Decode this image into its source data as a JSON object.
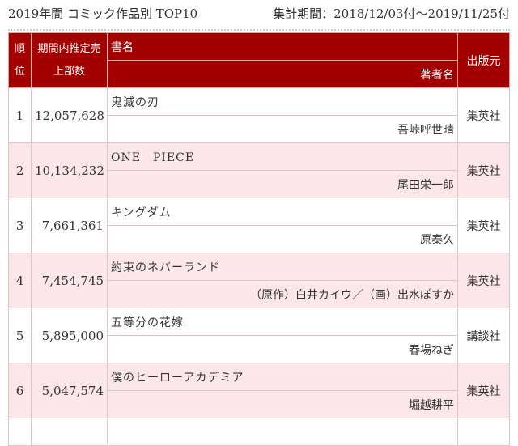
{
  "header": {
    "title": "2019年間 コミック作品別 TOP10",
    "period": "集計期間：2018/12/03付～2019/11/25付"
  },
  "columns": {
    "rank": "順位",
    "sales": "期間内推定売上部数",
    "title": "書名",
    "author": "著者名",
    "publisher": "出版元"
  },
  "colors": {
    "header_bg": "#a30000",
    "alt_row": "#fbe6ea"
  },
  "rows": [
    {
      "rank": "1",
      "sales": "12,057,628",
      "title": "鬼滅の刃",
      "author": "吾峠呼世晴",
      "publisher": "集英社"
    },
    {
      "rank": "2",
      "sales": "10,134,232",
      "title": "ONE　PIECE",
      "author": "尾田栄一郎",
      "publisher": "集英社"
    },
    {
      "rank": "3",
      "sales": "7,661,361",
      "title": "キングダム",
      "author": "原泰久",
      "publisher": "集英社"
    },
    {
      "rank": "4",
      "sales": "7,454,745",
      "title": "約束のネバーランド",
      "author": "（原作）白井カイウ／（画）出水ぽすか",
      "publisher": "集英社"
    },
    {
      "rank": "5",
      "sales": "5,895,000",
      "title": "五等分の花嫁",
      "author": "春場ねぎ",
      "publisher": "講談社"
    },
    {
      "rank": "6",
      "sales": "5,047,574",
      "title": "僕のヒーローアカデミア",
      "author": "堀越耕平",
      "publisher": "集英社"
    }
  ]
}
